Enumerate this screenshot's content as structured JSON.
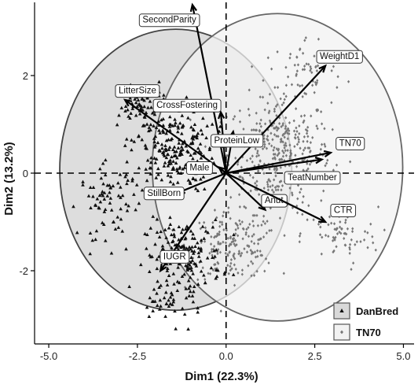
{
  "chart_data": {
    "type": "scatter",
    "subtype": "pca-biplot",
    "xlabel": "Dim1 (22.3%)",
    "ylabel": "Dim2 (13.2%)",
    "xlim": [
      -5.4,
      5.3
    ],
    "ylim": [
      -3.5,
      3.5
    ],
    "x_ticks": [
      -5.0,
      -2.5,
      0.0,
      2.5,
      5.0
    ],
    "x_tick_labels": [
      "-5.0",
      "-2.5",
      "0.0",
      "2.5",
      "5.0"
    ],
    "y_ticks": [
      -2,
      0,
      2
    ],
    "y_tick_labels": [
      "-2",
      "0",
      "2"
    ],
    "grid": false,
    "reference_lines": {
      "x": 0,
      "y": 0,
      "style": "dashed"
    },
    "legend": {
      "placement": "bottom-right",
      "entries": [
        {
          "name": "DanBred",
          "marker": "triangle",
          "color": "#111111",
          "fill": "#d9d9d9"
        },
        {
          "name": "TN70",
          "marker": "diamond",
          "color": "#777777",
          "fill": "#f2f2f2"
        }
      ]
    },
    "groups": [
      {
        "name": "DanBred",
        "marker": "triangle",
        "color": "#111111",
        "ellipse_fill": "#d9d9d9",
        "ellipse_stroke": "#444444",
        "ellipse": {
          "center": [
            -1.42,
            0.07
          ],
          "half_widths": [
            3.27,
            2.88
          ],
          "rotation_deg": 0
        },
        "point_clouds": [
          {
            "center": [
              -1.5,
              0.5
            ],
            "spread": [
              1.0,
              0.75
            ],
            "n": 230
          },
          {
            "center": [
              -1.2,
              -1.7
            ],
            "spread": [
              0.9,
              0.6
            ],
            "n": 170
          },
          {
            "center": [
              -3.3,
              -0.6
            ],
            "spread": [
              0.7,
              0.6
            ],
            "n": 70
          },
          {
            "center": [
              -2.3,
              1.4
            ],
            "spread": [
              0.6,
              0.3
            ],
            "n": 70
          },
          {
            "center": [
              -1.6,
              -2.6
            ],
            "spread": [
              0.8,
              0.4
            ],
            "n": 40
          }
        ]
      },
      {
        "name": "TN70",
        "marker": "diamond",
        "color": "#777777",
        "ellipse_fill": "#f2f2f2",
        "ellipse_stroke": "#666666",
        "ellipse": {
          "center": [
            1.45,
            0.12
          ],
          "half_widths": [
            3.53,
            3.15
          ],
          "rotation_deg": 0
        },
        "point_clouds": [
          {
            "center": [
              1.5,
              0.4
            ],
            "spread": [
              1.2,
              1.0
            ],
            "n": 380
          },
          {
            "center": [
              0.2,
              -1.5
            ],
            "spread": [
              1.0,
              0.55
            ],
            "n": 180
          },
          {
            "center": [
              3.2,
              -1.3
            ],
            "spread": [
              0.9,
              0.5
            ],
            "n": 70
          },
          {
            "center": [
              2.3,
              2.1
            ],
            "spread": [
              0.9,
              0.6
            ],
            "n": 60
          }
        ]
      }
    ],
    "loadings": [
      {
        "name": "SecondParity",
        "x": -0.95,
        "y": 3.45,
        "label_at": [
          -1.6,
          3.15
        ]
      },
      {
        "name": "WeightD1",
        "x": 2.8,
        "y": 2.2,
        "label_at": [
          3.2,
          2.4
        ]
      },
      {
        "name": "LitterSize",
        "x": -2.85,
        "y": 1.5,
        "label_at": [
          -2.5,
          1.7
        ]
      },
      {
        "name": "CrossFostering",
        "x": -0.15,
        "y": 1.25,
        "label_at": [
          -1.1,
          1.4
        ]
      },
      {
        "name": "ProteinLow",
        "x": 0.2,
        "y": 0.85,
        "label_at": [
          0.3,
          0.68
        ]
      },
      {
        "name": "TN70",
        "x": 2.95,
        "y": 0.42,
        "label_at": [
          3.5,
          0.62
        ]
      },
      {
        "name": "TeatNumber",
        "x": 2.7,
        "y": 0.28,
        "label_at": [
          2.43,
          -0.08
        ]
      },
      {
        "name": "Male",
        "x": -0.2,
        "y": 0.12,
        "label_at": [
          -0.75,
          0.12
        ]
      },
      {
        "name": "StillBorn",
        "x": -1.35,
        "y": -0.4,
        "label_at": [
          -1.75,
          -0.4
        ]
      },
      {
        "name": "Anut",
        "x": 1.1,
        "y": -0.75,
        "label_at": [
          1.35,
          -0.55
        ]
      },
      {
        "name": "CTR",
        "x": 2.8,
        "y": -1.0,
        "label_at": [
          3.3,
          -0.75
        ]
      },
      {
        "name": "IUGR",
        "x": -1.85,
        "y": -2.0,
        "label_at": [
          -1.45,
          -1.7
        ]
      }
    ]
  }
}
